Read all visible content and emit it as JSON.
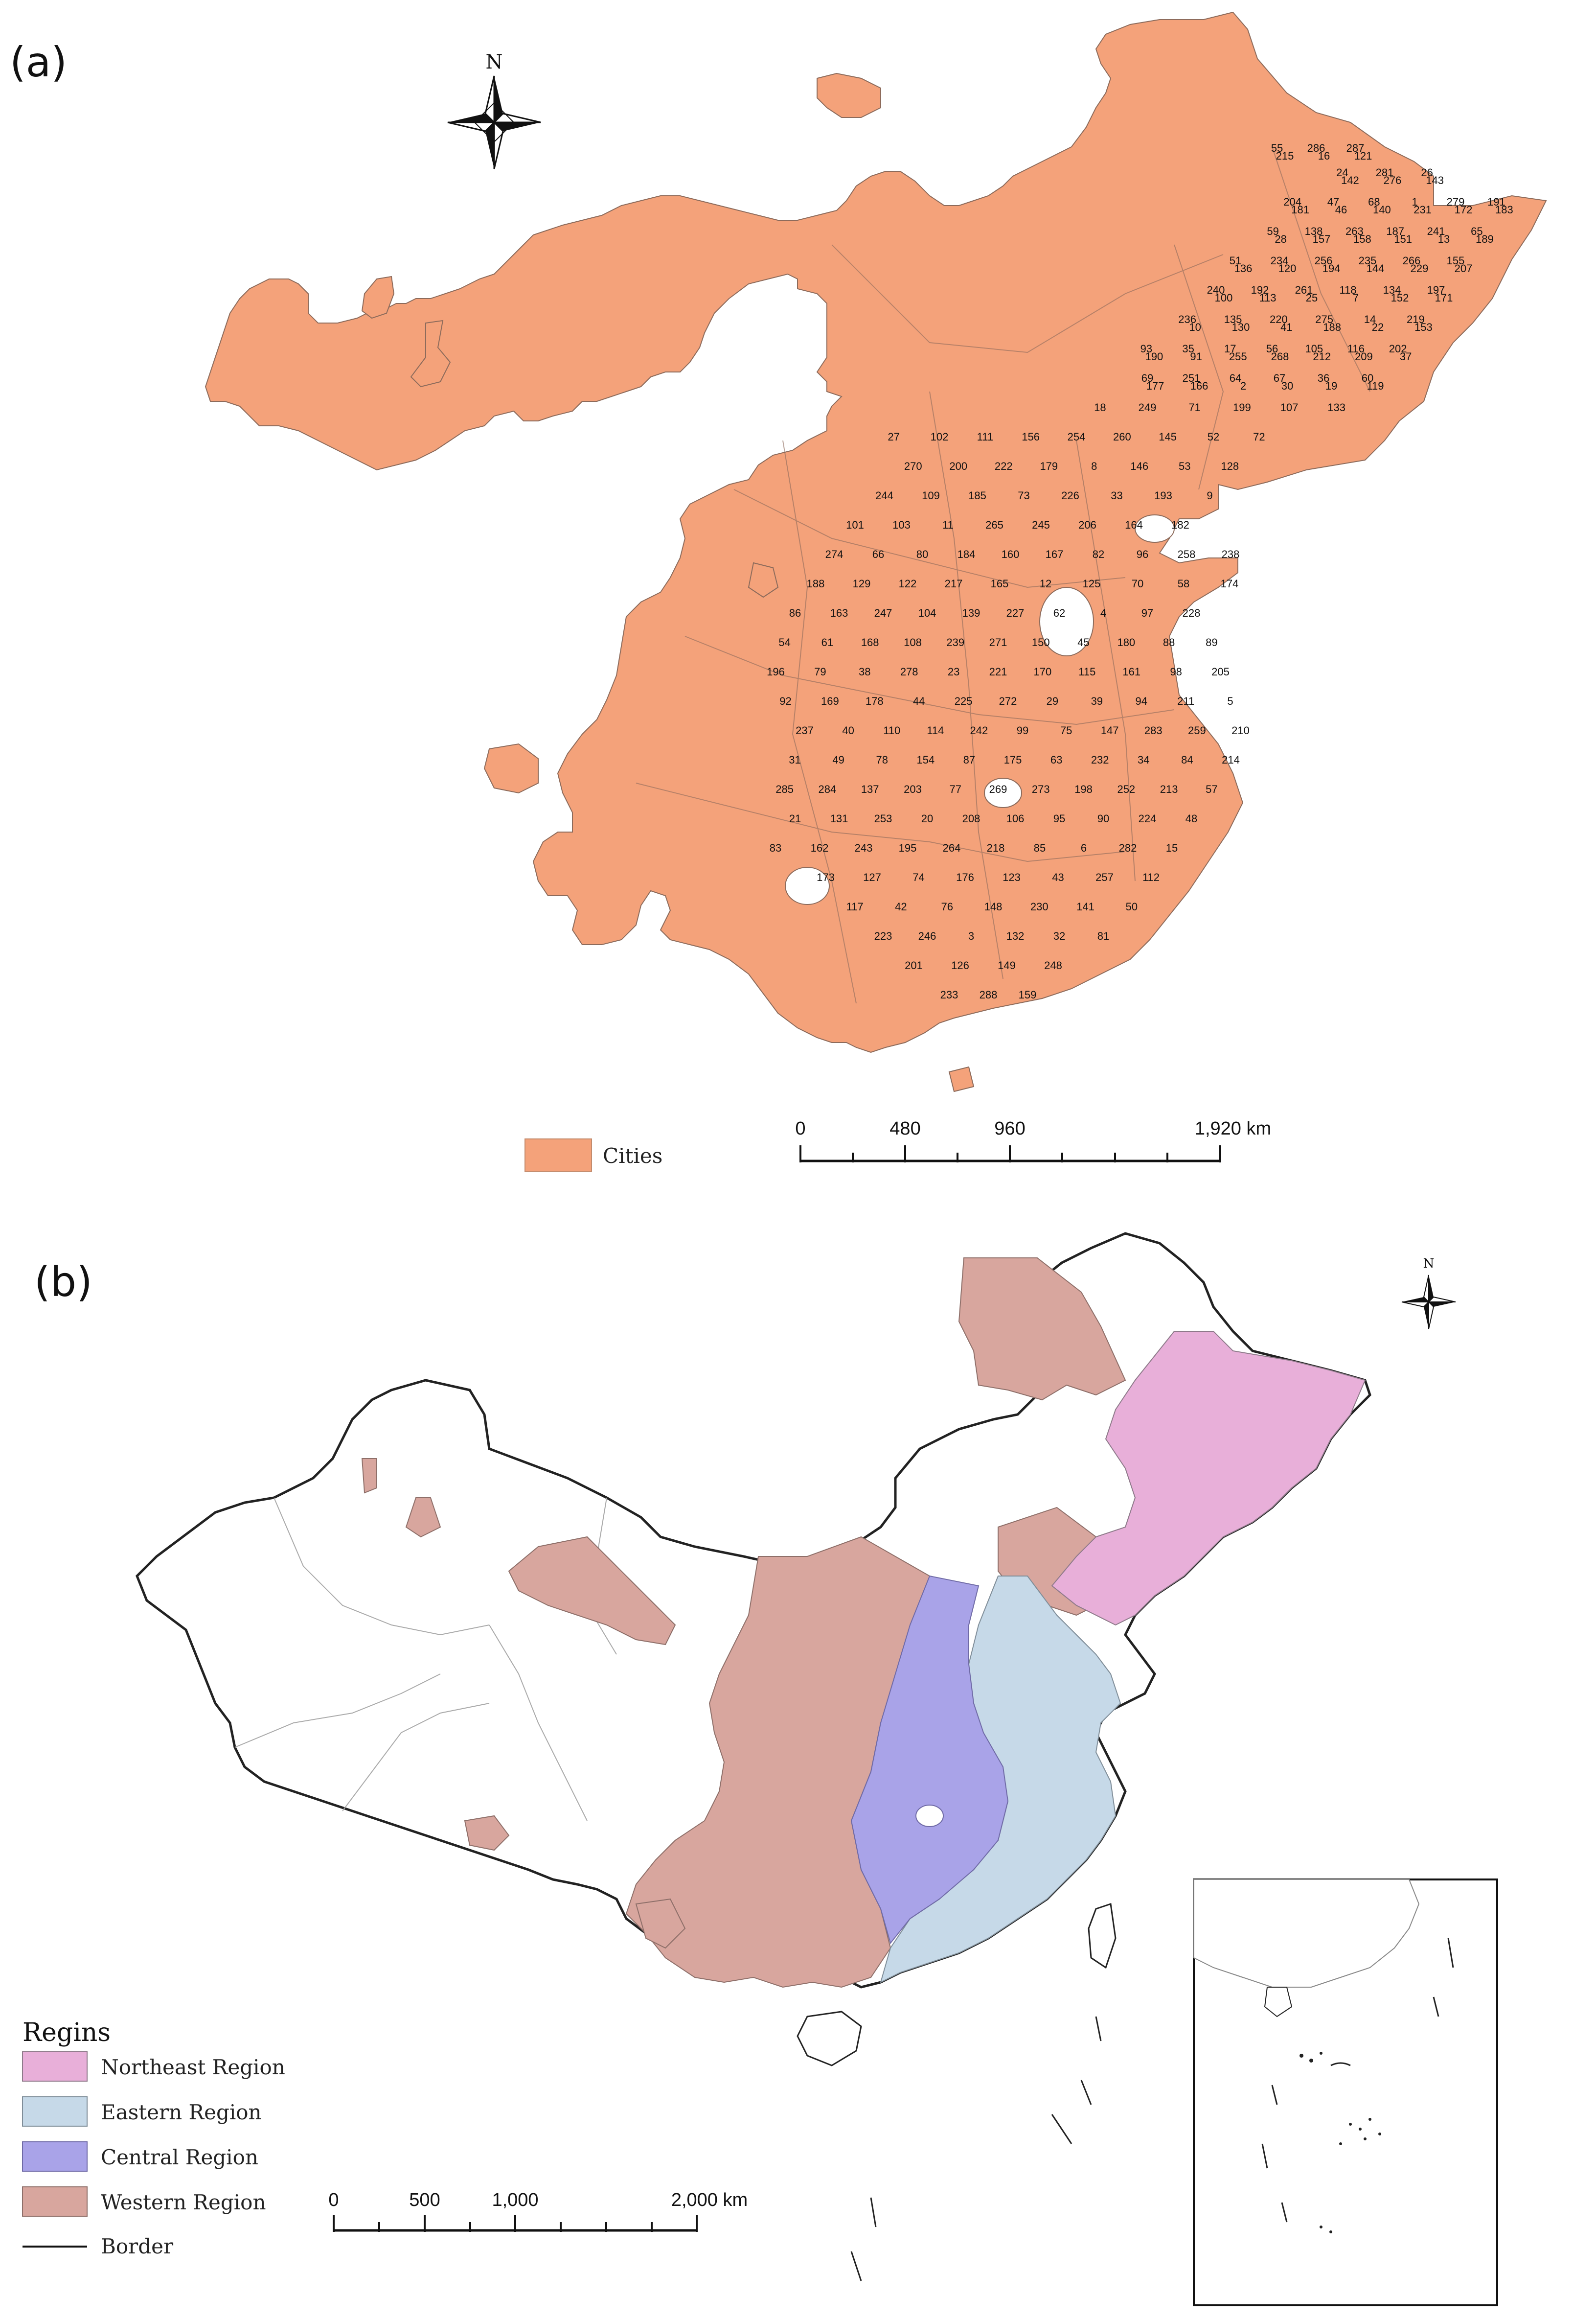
{
  "panel_a": {
    "label": "(a)",
    "north": "N",
    "legend": {
      "label": "Cities",
      "color": "#f4a27a"
    },
    "scalebar": {
      "ticks": [
        "0",
        "480",
        "960",
        "1,920 km"
      ]
    },
    "city_numbers": [
      "55",
      "286",
      "287",
      "24",
      "281",
      "26",
      "204",
      "47",
      "68",
      "1",
      "279",
      "191",
      "59",
      "138",
      "263",
      "187",
      "241",
      "65",
      "51",
      "234",
      "256",
      "235",
      "266",
      "155",
      "240",
      "192",
      "261",
      "118",
      "134",
      "197",
      "236",
      "135",
      "220",
      "275",
      "14",
      "219",
      "93",
      "35",
      "17",
      "56",
      "105",
      "116",
      "202",
      "69",
      "251",
      "64",
      "67",
      "36",
      "60",
      "18",
      "249",
      "71",
      "199",
      "107",
      "133",
      "27",
      "102",
      "111",
      "156",
      "254",
      "260",
      "145",
      "52",
      "72",
      "270",
      "200",
      "222",
      "179",
      "8",
      "146",
      "53",
      "128",
      "244",
      "109",
      "185",
      "73",
      "226",
      "33",
      "193",
      "9",
      "101",
      "103",
      "11",
      "265",
      "245",
      "206",
      "164",
      "182",
      "274",
      "66",
      "80",
      "184",
      "160",
      "167",
      "82",
      "96",
      "258",
      "238",
      "188",
      "129",
      "122",
      "217",
      "165",
      "12",
      "125",
      "70",
      "58",
      "174",
      "86",
      "163",
      "247",
      "104",
      "139",
      "227",
      "62",
      "4",
      "97",
      "228",
      "54",
      "61",
      "168",
      "108",
      "239",
      "271",
      "150",
      "45",
      "180",
      "88",
      "89",
      "196",
      "79",
      "38",
      "278",
      "23",
      "221",
      "170",
      "115",
      "161",
      "98",
      "205",
      "92",
      "169",
      "178",
      "44",
      "225",
      "272",
      "29",
      "39",
      "94",
      "211",
      "5",
      "237",
      "40",
      "110",
      "114",
      "242",
      "99",
      "75",
      "147",
      "283",
      "259",
      "210",
      "31",
      "49",
      "78",
      "154",
      "87",
      "175",
      "63",
      "232",
      "34",
      "84",
      "214",
      "285",
      "284",
      "137",
      "203",
      "77",
      "269",
      "273",
      "198",
      "252",
      "213",
      "57",
      "21",
      "131",
      "253",
      "20",
      "208",
      "106",
      "95",
      "90",
      "224",
      "48",
      "83",
      "162",
      "243",
      "195",
      "264",
      "218",
      "85",
      "6",
      "282",
      "15",
      "173",
      "127",
      "74",
      "176",
      "123",
      "43",
      "257",
      "112",
      "117",
      "42",
      "76",
      "148",
      "230",
      "141",
      "50",
      "223",
      "246",
      "3",
      "132",
      "32",
      "81",
      "201",
      "126",
      "149",
      "248",
      "233",
      "288",
      "159",
      "215",
      "16",
      "121",
      "142",
      "276",
      "143",
      "181",
      "46",
      "140",
      "231",
      "172",
      "183",
      "28",
      "157",
      "158",
      "151",
      "13",
      "189",
      "136",
      "120",
      "194",
      "144",
      "229",
      "207",
      "100",
      "113",
      "25",
      "7",
      "152",
      "171",
      "10",
      "130",
      "41",
      "188",
      "22",
      "153",
      "190",
      "91",
      "255",
      "268",
      "212",
      "209",
      "37",
      "177",
      "166",
      "2",
      "30",
      "19",
      "119"
    ]
  },
  "panel_b": {
    "label": "(b)",
    "north": "N",
    "legend": {
      "title": "Regins",
      "items": [
        {
          "label": "Northeast Region",
          "color": "#e8afd9"
        },
        {
          "label": "Eastern Region",
          "color": "#c6d9e8"
        },
        {
          "label": "Central Region",
          "color": "#a9a3e8"
        },
        {
          "label": "Western Region",
          "color": "#d8a69e"
        }
      ],
      "border_label": "Border"
    },
    "scalebar": {
      "ticks": [
        "0",
        "500",
        "1,000",
        "2,000 km"
      ]
    }
  }
}
